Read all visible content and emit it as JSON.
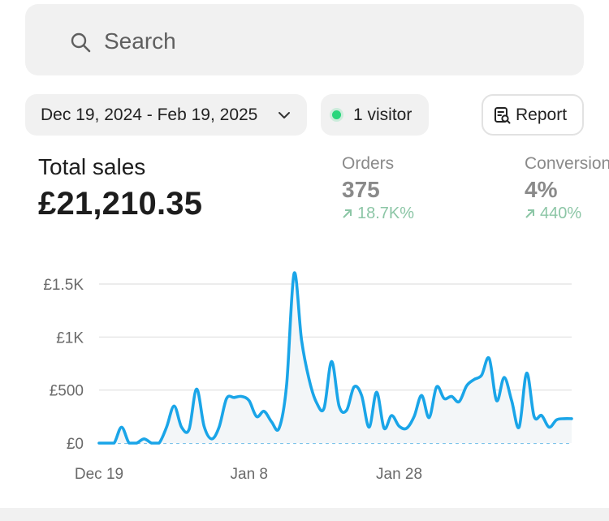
{
  "search": {
    "placeholder": "Search"
  },
  "filters": {
    "date_range": "Dec 19, 2024 - Feb 19, 2025",
    "visitors": "1 visitor",
    "report_label": "Report"
  },
  "summary": {
    "total_label": "Total sales",
    "total_value": "£21,210.35"
  },
  "metrics": [
    {
      "label": "Orders",
      "value": "375",
      "delta": "18.7K%"
    },
    {
      "label": "Conversion",
      "value": "4%",
      "delta": "440%"
    }
  ],
  "colors": {
    "accent": "#1aa5e8",
    "positive": "#8cc6a6",
    "online": "#29d67b",
    "chip_bg": "#f1f1f1"
  },
  "chart_data": {
    "type": "line",
    "title": "",
    "xlabel": "",
    "ylabel": "",
    "ylim": [
      0,
      1500
    ],
    "yticks": [
      "£0",
      "£500",
      "£1K",
      "£1.5K"
    ],
    "ytick_values": [
      0,
      500,
      1000,
      1500
    ],
    "xticks": [
      "Dec 19",
      "Jan 8",
      "Jan 28"
    ],
    "xtick_index": [
      0,
      20,
      40
    ],
    "grid": true,
    "legend": "none",
    "series": [
      {
        "values": [
          0,
          0,
          0,
          150,
          0,
          0,
          40,
          0,
          0,
          150,
          350,
          150,
          130,
          510,
          160,
          40,
          150,
          420,
          430,
          440,
          400,
          250,
          300,
          200,
          140,
          550,
          1600,
          970,
          600,
          380,
          330,
          770,
          350,
          310,
          530,
          450,
          150,
          480,
          140,
          260,
          160,
          140,
          250,
          450,
          240,
          530,
          420,
          440,
          390,
          540,
          600,
          640,
          800,
          400,
          620,
          400,
          150,
          660,
          250,
          260,
          150,
          220,
          230,
          230
        ]
      }
    ]
  }
}
